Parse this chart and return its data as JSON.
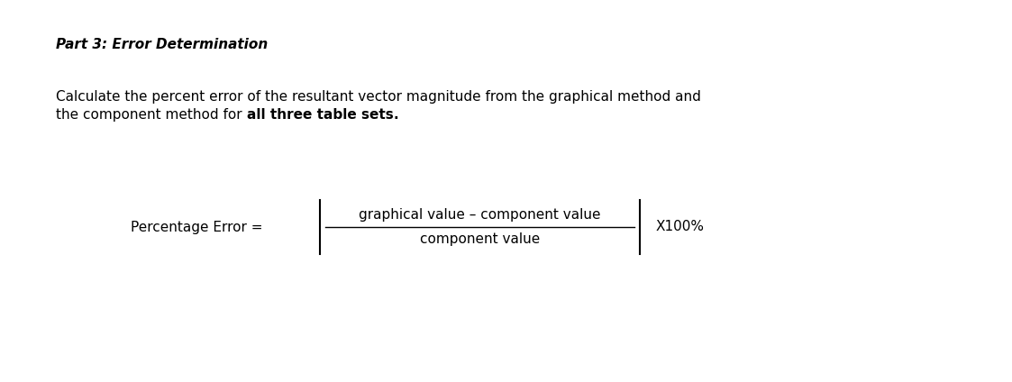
{
  "title": "Part 3: Error Determination",
  "body_line1": "Calculate the percent error of the resultant vector magnitude from the graphical method and",
  "body_line2_normal": "the component method for ",
  "body_line2_bold": "all three table sets",
  "body_line2_end": ".",
  "label_left": "Percentage Error =",
  "numerator": "graphical value – component value",
  "denominator": "component value",
  "label_right": "X100%",
  "bg_color": "#ffffff",
  "text_color": "#000000",
  "title_fontsize": 11,
  "body_fontsize": 11,
  "formula_fontsize": 11,
  "fig_width": 11.23,
  "fig_height": 4.24,
  "dpi": 100
}
